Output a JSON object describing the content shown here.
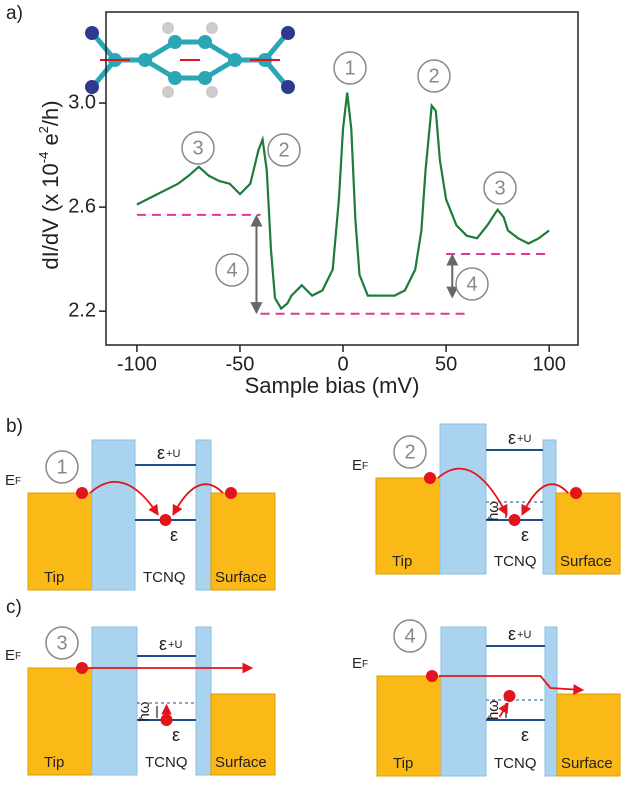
{
  "chart_data": {
    "type": "line",
    "panel_label": "a)",
    "xlabel": "Sample bias (mV)",
    "ylabel_parts": [
      "dI/dV (x 10",
      "-4",
      " e",
      "2",
      "/h)"
    ],
    "x": [
      -100,
      -90,
      -80,
      -75,
      -70,
      -65,
      -60,
      -55,
      -50,
      -45,
      -41,
      -39,
      -37,
      -35,
      -33,
      -30,
      -27,
      -25,
      -20,
      -15,
      -10,
      -5,
      -2,
      0,
      2,
      4,
      6,
      8,
      12,
      20,
      25,
      30,
      35,
      38,
      40,
      43,
      45,
      47,
      50,
      55,
      60,
      65,
      70,
      75,
      78,
      80,
      85,
      90,
      95,
      100
    ],
    "series": [
      {
        "color": "#1e7b3a",
        "values": [
          2.61,
          2.65,
          2.69,
          2.72,
          2.755,
          2.72,
          2.7,
          2.69,
          2.65,
          2.69,
          2.82,
          2.86,
          2.74,
          2.44,
          2.25,
          2.21,
          2.23,
          2.26,
          2.3,
          2.26,
          2.28,
          2.36,
          2.63,
          2.9,
          3.04,
          2.9,
          2.55,
          2.34,
          2.26,
          2.26,
          2.26,
          2.28,
          2.36,
          2.51,
          2.74,
          2.99,
          2.97,
          2.78,
          2.63,
          2.53,
          2.49,
          2.48,
          2.53,
          2.59,
          2.56,
          2.51,
          2.48,
          2.46,
          2.48,
          2.51
        ]
      }
    ],
    "xlim": [
      -115,
      114
    ],
    "ylim": [
      2.07,
      3.35
    ],
    "xticks": [
      -100,
      -50,
      0,
      50,
      100
    ],
    "yticks": [
      2.2,
      2.6,
      {
        "value": 3,
        "label": "3.0"
      }
    ],
    "reference_color": "#e6359a",
    "reference_lines": [
      {
        "y": 2.57,
        "x": [
          -100,
          -40
        ]
      },
      {
        "y": 2.19,
        "x": [
          -40,
          60
        ]
      },
      {
        "y": 2.42,
        "x": [
          50,
          100
        ]
      }
    ],
    "arrows": [
      {
        "x": -42,
        "y": [
          2.19,
          2.57
        ]
      },
      {
        "x": 53,
        "y": [
          2.25,
          2.42
        ]
      }
    ],
    "annotations": [
      "1",
      "2",
      "2",
      "3",
      "3",
      "4",
      "4"
    ]
  },
  "diagrams": {
    "panel_labels": [
      "b)",
      "c)"
    ],
    "panels": [
      {
        "number": "1",
        "fermi": "E",
        "fermi_sub": "F",
        "upper_level": "ε",
        "upper_sub": "+U",
        "level": "ε",
        "tip": "Tip",
        "molecule": "TCNQ",
        "surface": "Surface"
      },
      {
        "number": "2",
        "fermi": "E",
        "fermi_sub": "F",
        "upper_level": "ε",
        "upper_sub": "+U",
        "level": "ε",
        "phonon": "ħω",
        "tip": "Tip",
        "molecule": "TCNQ",
        "surface": "Surface"
      },
      {
        "number": "3",
        "fermi": "E",
        "fermi_sub": "F",
        "upper_level": "ε",
        "upper_sub": "+U",
        "level": "ε",
        "phonon": "ħω",
        "tip": "Tip",
        "molecule": "TCNQ",
        "surface": "Surface"
      },
      {
        "number": "4",
        "fermi": "E",
        "fermi_sub": "F",
        "upper_level": "ε",
        "upper_sub": "+U",
        "level": "ε",
        "phonon": "ħω",
        "tip": "Tip",
        "molecule": "TCNQ",
        "surface": "Surface"
      }
    ]
  }
}
